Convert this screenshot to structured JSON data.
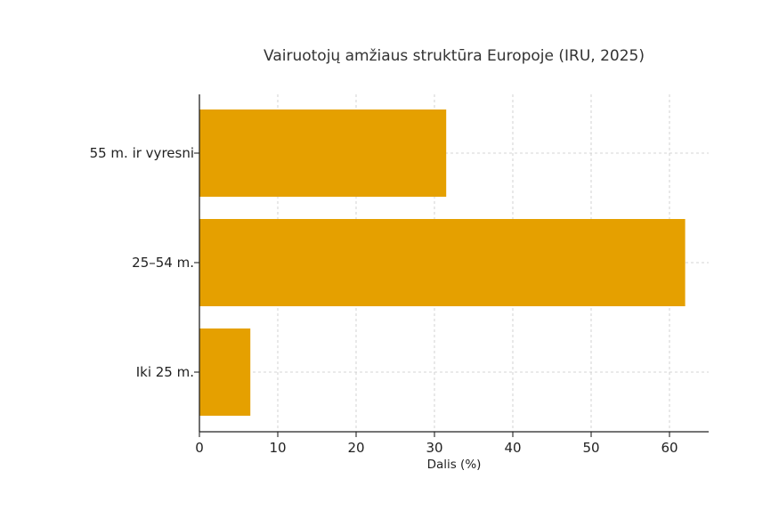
{
  "chart_data": {
    "type": "bar",
    "orientation": "horizontal",
    "title": "Vairuotojų amžiaus struktūra Europoje (IRU, 2025)",
    "xlabel": "Dalis (%)",
    "ylabel": "",
    "categories": [
      "Iki 25 m.",
      "25–54 m.",
      "55 m. ir vyresni"
    ],
    "values": [
      6.5,
      62,
      31.5
    ],
    "xlim": [
      0,
      65
    ],
    "xticks": [
      0,
      10,
      20,
      30,
      40,
      50,
      60
    ],
    "grid": true,
    "legend": "none",
    "bar_color": "#E5A000"
  }
}
